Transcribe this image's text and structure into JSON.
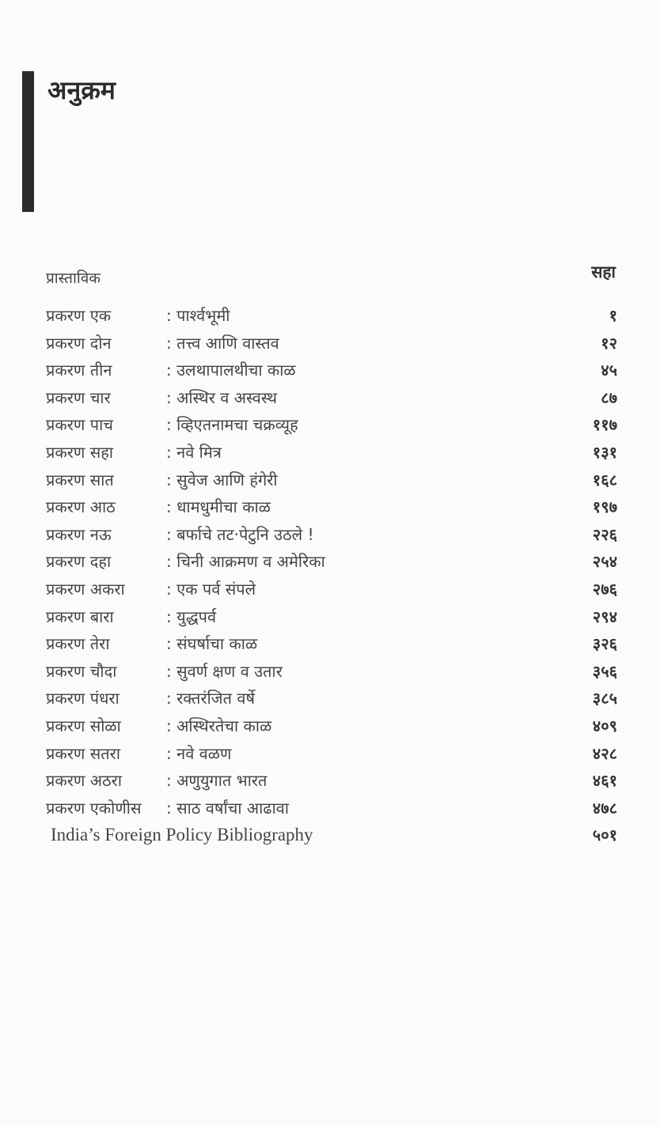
{
  "heading": "अनुक्रम",
  "intro": {
    "label": "प्रास्ताविक",
    "page": "सहा"
  },
  "chapters": [
    {
      "label": "प्रकरण एक",
      "title": ": पार्श्वभूमी",
      "page": "१"
    },
    {
      "label": "प्रकरण दोन",
      "title": ": तत्त्व आणि वास्तव",
      "page": "१२"
    },
    {
      "label": "प्रकरण तीन",
      "title": ": उलथापालथीचा काळ",
      "page": "४५"
    },
    {
      "label": "प्रकरण चार",
      "title": ": अस्थिर व अस्वस्थ",
      "page": "८७"
    },
    {
      "label": "प्रकरण पाच",
      "title": ": व्हिएतनामचा चक्रव्यूह",
      "page": "११७"
    },
    {
      "label": "प्रकरण सहा",
      "title": ": नवे मित्र",
      "page": "१३१"
    },
    {
      "label": "प्रकरण सात",
      "title": ": सुवेज आणि हंगेरी",
      "page": "१६८"
    },
    {
      "label": "प्रकरण आठ",
      "title": ": धामधुमीचा काळ",
      "page": "१९७"
    },
    {
      "label": "प्रकरण नऊ",
      "title": ": बर्फाचे तट·पेटुनि उठले !",
      "page": "२२६"
    },
    {
      "label": "प्रकरण दहा",
      "title": ": चिनी आक्रमण व अमेरिका",
      "page": "२५४"
    },
    {
      "label": "प्रकरण अकरा",
      "title": ": एक पर्व संपले",
      "page": "२७६"
    },
    {
      "label": "प्रकरण बारा",
      "title": ": युद्धपर्व",
      "page": "२९४"
    },
    {
      "label": "प्रकरण तेरा",
      "title": ": संघर्षाचा काळ",
      "page": "३२६"
    },
    {
      "label": "प्रकरण चौदा",
      "title": ": सुवर्ण क्षण व उतार",
      "page": "३५६"
    },
    {
      "label": "प्रकरण पंधरा",
      "title": ": रक्तरंजित वर्षे",
      "page": "३८५"
    },
    {
      "label": "प्रकरण सोळा",
      "title": ": अस्थिरतेचा काळ",
      "page": "४०९"
    },
    {
      "label": "प्रकरण सतरा",
      "title": ": नवे वळण",
      "page": "४२८"
    },
    {
      "label": "प्रकरण अठरा",
      "title": ": अणुयुगात भारत",
      "page": "४६१"
    },
    {
      "label": "प्रकरण एकोणीस",
      "title": ": साठ वर्षांचा आढावा",
      "page": "४७८"
    }
  ],
  "bibliography": {
    "label": "India’s Foreign Policy Bibliography",
    "page": "५०१"
  }
}
